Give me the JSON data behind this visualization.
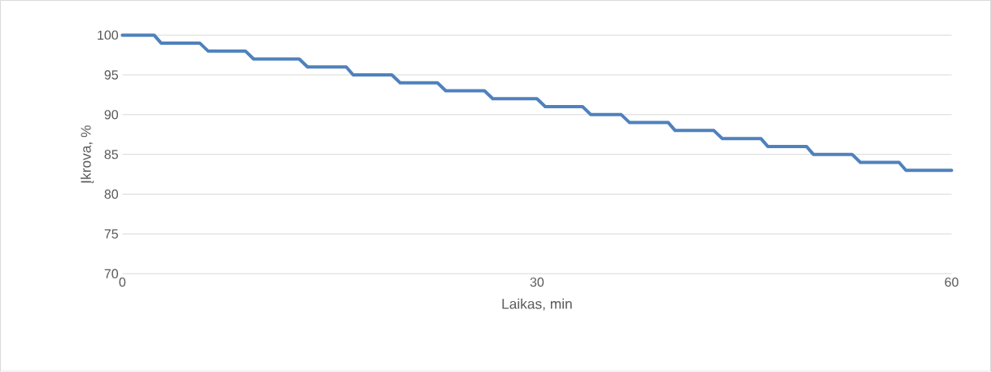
{
  "chart_data": {
    "type": "line",
    "xlabel": "Laikas, min",
    "ylabel": "Įkrova, %",
    "x": [
      0,
      2.3,
      2.8,
      5.6,
      6.2,
      8.9,
      9.5,
      12.8,
      13.4,
      16.2,
      16.7,
      19.5,
      20.1,
      22.8,
      23.4,
      26.2,
      26.8,
      30.0,
      30.6,
      33.3,
      33.9,
      36.1,
      36.7,
      39.5,
      40.0,
      42.8,
      43.4,
      46.2,
      46.7,
      49.5,
      50.0,
      52.8,
      53.4,
      56.2,
      56.7,
      60
    ],
    "series": [
      {
        "color": "#4f81bd",
        "values": [
          100,
          100,
          99,
          99,
          98,
          98,
          97,
          97,
          96,
          96,
          95,
          95,
          94,
          94,
          93,
          93,
          92,
          92,
          91,
          91,
          90,
          90,
          89,
          89,
          88,
          88,
          87,
          87,
          86,
          86,
          85,
          85,
          84,
          84,
          83,
          83
        ]
      }
    ],
    "xlim": [
      0,
      60
    ],
    "xticks": [
      0,
      30,
      60
    ],
    "ylim": [
      70,
      100
    ],
    "yticks": [
      70,
      75,
      80,
      85,
      90,
      95,
      100
    ],
    "grid": "y",
    "marker": "none",
    "line_style": "solid"
  }
}
